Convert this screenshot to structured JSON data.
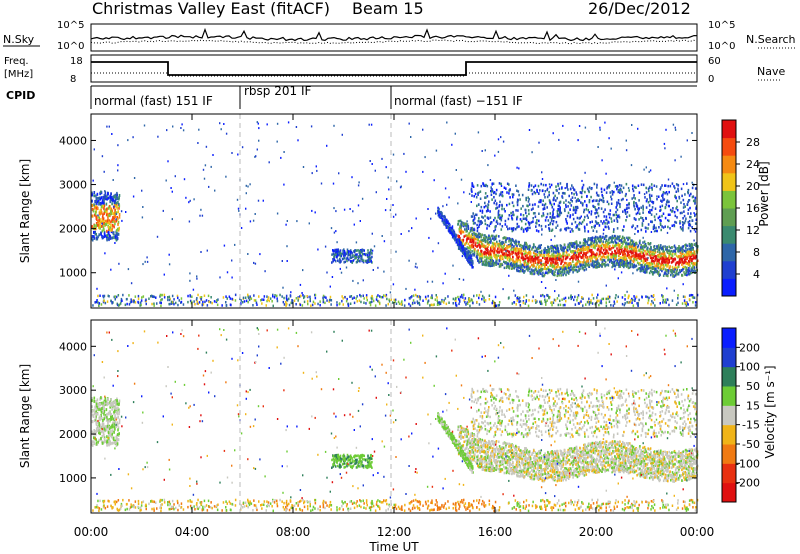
{
  "header": {
    "station": "Christmas Valley East (fitACF)",
    "beam": "Beam 15",
    "date": "26/Dec/2012"
  },
  "colors": {
    "power_scale": [
      "#0a1eff",
      "#1f3fd0",
      "#2e66a8",
      "#3a8a6f",
      "#5f9e52",
      "#7bc43b",
      "#f0c419",
      "#f58a12",
      "#f54b0f",
      "#e01010"
    ],
    "velocity_scale": [
      "#0a1eff",
      "#1f3fd0",
      "#2e7f5a",
      "#6dcc35",
      "#c8c8c0",
      "#f0b418",
      "#f07a12",
      "#e83010",
      "#e01010"
    ],
    "sky": "#000000"
  },
  "top_panels": {
    "noise": {
      "label_left": "N.Sky",
      "label_right": "N.Search",
      "left_ticks": [
        "10^5",
        "10^0"
      ],
      "right_ticks": [
        "10^5",
        "10^0"
      ]
    },
    "freq": {
      "label_left_line1": "Freq.",
      "label_left_line2": "[MHz]",
      "label_right": "Nave",
      "left_ticks": [
        "18",
        "8"
      ],
      "right_ticks": [
        "60",
        "0"
      ]
    },
    "cpid": {
      "label": "CPID",
      "segments": [
        {
          "text": "normal (fast) 151 IF",
          "start_h": 0.0
        },
        {
          "text": "rbsp 201 IF",
          "start_h": 6.0
        },
        {
          "text": "normal (fast) −151 IF",
          "start_h": 12.0
        }
      ]
    }
  },
  "chart_data": [
    {
      "type": "heatmap",
      "title": "Power",
      "ylabel": "Slant Range [km]",
      "colorbar_label": "Power [dB]",
      "colorbar_ticks": [
        "4",
        "8",
        "12",
        "16",
        "20",
        "24",
        "28"
      ],
      "ylim": [
        200,
        4600
      ],
      "y_ticks": [
        "1000",
        "2000",
        "3000",
        "4000"
      ],
      "xlim_hours": [
        0,
        24
      ],
      "features": [
        {
          "name": "evening band",
          "t_start_h": 14.5,
          "t_end_h": 24.0,
          "range_km": [
            1100,
            1700
          ],
          "peak_db": 28
        },
        {
          "name": "upper echoes",
          "t_start_h": 15.0,
          "t_end_h": 24.0,
          "range_km": [
            2000,
            2900
          ],
          "peak_db": 12
        },
        {
          "name": "early echoes",
          "t_start_h": 0.0,
          "t_end_h": 1.2,
          "range_km": [
            1700,
            2900
          ],
          "peak_db": 24
        },
        {
          "name": "near-range clutter",
          "t_start_h": 0.0,
          "t_end_h": 24.0,
          "range_km": [
            200,
            500
          ],
          "peak_db": 8
        }
      ]
    },
    {
      "type": "heatmap",
      "title": "Velocity",
      "ylabel": "Slant Range [km]",
      "colorbar_label": "Velocity [m s⁻¹]",
      "colorbar_ticks": [
        "200",
        "100",
        "50",
        "15",
        "-15",
        "-50",
        "-100",
        "-200"
      ],
      "ylim": [
        200,
        4600
      ],
      "y_ticks": [
        "1000",
        "2000",
        "3000",
        "4000"
      ],
      "xlim_hours": [
        0,
        24
      ],
      "x_ticks": [
        "00:00",
        "04:00",
        "08:00",
        "12:00",
        "16:00",
        "20:00",
        "00:00"
      ],
      "xlabel": "Time UT"
    }
  ]
}
